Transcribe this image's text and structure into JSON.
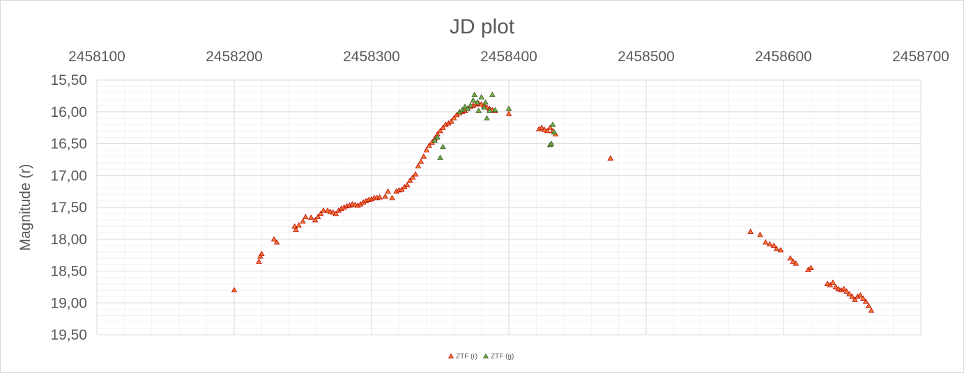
{
  "chart_data": {
    "type": "scatter",
    "title": "JD plot",
    "ylabel": "Magnitude (r)",
    "xlabel": "",
    "xlim": [
      2458100,
      2458700
    ],
    "ylim": [
      15.5,
      19.5
    ],
    "y_reversed": true,
    "x_axis_position": "top",
    "x_ticks": [
      "2458100",
      "2458200",
      "2458300",
      "2458400",
      "2458500",
      "2458600",
      "2458700"
    ],
    "y_ticks": [
      "15,50",
      "16,00",
      "16,50",
      "17,00",
      "17,50",
      "18,00",
      "18,50",
      "19,00",
      "19,50"
    ],
    "grid": true,
    "legend_position": "bottom",
    "series": [
      {
        "name": "ZTF (r)",
        "color": "#ed7d31",
        "edge": "#c00000",
        "marker": "triangle",
        "points": [
          [
            2458200,
            18.8
          ],
          [
            2458218,
            18.35
          ],
          [
            2458219,
            18.27
          ],
          [
            2458220,
            18.23
          ],
          [
            2458229,
            18.0
          ],
          [
            2458231,
            18.05
          ],
          [
            2458244,
            17.8
          ],
          [
            2458245,
            17.85
          ],
          [
            2458247,
            17.78
          ],
          [
            2458250,
            17.72
          ],
          [
            2458252,
            17.65
          ],
          [
            2458256,
            17.66
          ],
          [
            2458259,
            17.7
          ],
          [
            2458261,
            17.65
          ],
          [
            2458263,
            17.6
          ],
          [
            2458265,
            17.55
          ],
          [
            2458268,
            17.55
          ],
          [
            2458270,
            17.57
          ],
          [
            2458272,
            17.58
          ],
          [
            2458274,
            17.6
          ],
          [
            2458276,
            17.55
          ],
          [
            2458278,
            17.52
          ],
          [
            2458280,
            17.5
          ],
          [
            2458282,
            17.48
          ],
          [
            2458284,
            17.47
          ],
          [
            2458286,
            17.45
          ],
          [
            2458288,
            17.46
          ],
          [
            2458290,
            17.47
          ],
          [
            2458292,
            17.45
          ],
          [
            2458294,
            17.42
          ],
          [
            2458296,
            17.4
          ],
          [
            2458298,
            17.38
          ],
          [
            2458300,
            17.37
          ],
          [
            2458302,
            17.35
          ],
          [
            2458304,
            17.35
          ],
          [
            2458306,
            17.34
          ],
          [
            2458310,
            17.33
          ],
          [
            2458312,
            17.25
          ],
          [
            2458315,
            17.35
          ],
          [
            2458318,
            17.25
          ],
          [
            2458320,
            17.23
          ],
          [
            2458322,
            17.22
          ],
          [
            2458324,
            17.18
          ],
          [
            2458326,
            17.15
          ],
          [
            2458328,
            17.08
          ],
          [
            2458330,
            17.03
          ],
          [
            2458332,
            16.98
          ],
          [
            2458334,
            16.85
          ],
          [
            2458336,
            16.78
          ],
          [
            2458338,
            16.7
          ],
          [
            2458340,
            16.6
          ],
          [
            2458342,
            16.53
          ],
          [
            2458344,
            16.48
          ],
          [
            2458346,
            16.42
          ],
          [
            2458348,
            16.35
          ],
          [
            2458350,
            16.3
          ],
          [
            2458352,
            16.25
          ],
          [
            2458354,
            16.2
          ],
          [
            2458356,
            16.18
          ],
          [
            2458358,
            16.15
          ],
          [
            2458360,
            16.1
          ],
          [
            2458362,
            16.05
          ],
          [
            2458364,
            16.02
          ],
          [
            2458366,
            16.0
          ],
          [
            2458368,
            15.98
          ],
          [
            2458370,
            15.95
          ],
          [
            2458372,
            15.92
          ],
          [
            2458374,
            15.9
          ],
          [
            2458376,
            15.88
          ],
          [
            2458378,
            15.87
          ],
          [
            2458380,
            15.88
          ],
          [
            2458382,
            15.9
          ],
          [
            2458384,
            15.93
          ],
          [
            2458386,
            15.95
          ],
          [
            2458388,
            15.97
          ],
          [
            2458390,
            15.98
          ],
          [
            2458400,
            16.03
          ],
          [
            2458422,
            16.27
          ],
          [
            2458424,
            16.25
          ],
          [
            2458426,
            16.28
          ],
          [
            2458428,
            16.3
          ],
          [
            2458430,
            16.25
          ],
          [
            2458432,
            16.3
          ],
          [
            2458434,
            16.35
          ],
          [
            2458474,
            16.73
          ],
          [
            2458576,
            17.88
          ],
          [
            2458583,
            17.93
          ],
          [
            2458587,
            18.05
          ],
          [
            2458590,
            18.08
          ],
          [
            2458593,
            18.1
          ],
          [
            2458595,
            18.15
          ],
          [
            2458598,
            18.17
          ],
          [
            2458605,
            18.3
          ],
          [
            2458607,
            18.35
          ],
          [
            2458609,
            18.38
          ],
          [
            2458618,
            18.48
          ],
          [
            2458620,
            18.45
          ],
          [
            2458632,
            18.7
          ],
          [
            2458634,
            18.72
          ],
          [
            2458636,
            18.68
          ],
          [
            2458638,
            18.75
          ],
          [
            2458640,
            18.78
          ],
          [
            2458642,
            18.8
          ],
          [
            2458644,
            18.78
          ],
          [
            2458646,
            18.82
          ],
          [
            2458648,
            18.86
          ],
          [
            2458650,
            18.9
          ],
          [
            2458652,
            18.95
          ],
          [
            2458654,
            18.9
          ],
          [
            2458656,
            18.88
          ],
          [
            2458658,
            18.93
          ],
          [
            2458660,
            18.98
          ],
          [
            2458662,
            19.05
          ],
          [
            2458664,
            19.12
          ]
        ]
      },
      {
        "name": "ZTF (g)",
        "color": "#70ad47",
        "edge": "#385723",
        "marker": "triangle",
        "points": [
          [
            2458346,
            16.45
          ],
          [
            2458348,
            16.4
          ],
          [
            2458350,
            16.72
          ],
          [
            2458352,
            16.55
          ],
          [
            2458364,
            16.0
          ],
          [
            2458366,
            15.97
          ],
          [
            2458368,
            15.92
          ],
          [
            2458370,
            15.95
          ],
          [
            2458372,
            15.9
          ],
          [
            2458374,
            15.82
          ],
          [
            2458375,
            15.73
          ],
          [
            2458377,
            15.85
          ],
          [
            2458378,
            15.98
          ],
          [
            2458380,
            15.77
          ],
          [
            2458382,
            15.93
          ],
          [
            2458383,
            15.85
          ],
          [
            2458384,
            16.1
          ],
          [
            2458386,
            15.98
          ],
          [
            2458388,
            15.73
          ],
          [
            2458390,
            15.97
          ],
          [
            2458400,
            15.95
          ],
          [
            2458430,
            16.52
          ],
          [
            2458431,
            16.5
          ],
          [
            2458432,
            16.2
          ],
          [
            2458433,
            16.32
          ]
        ]
      }
    ]
  }
}
